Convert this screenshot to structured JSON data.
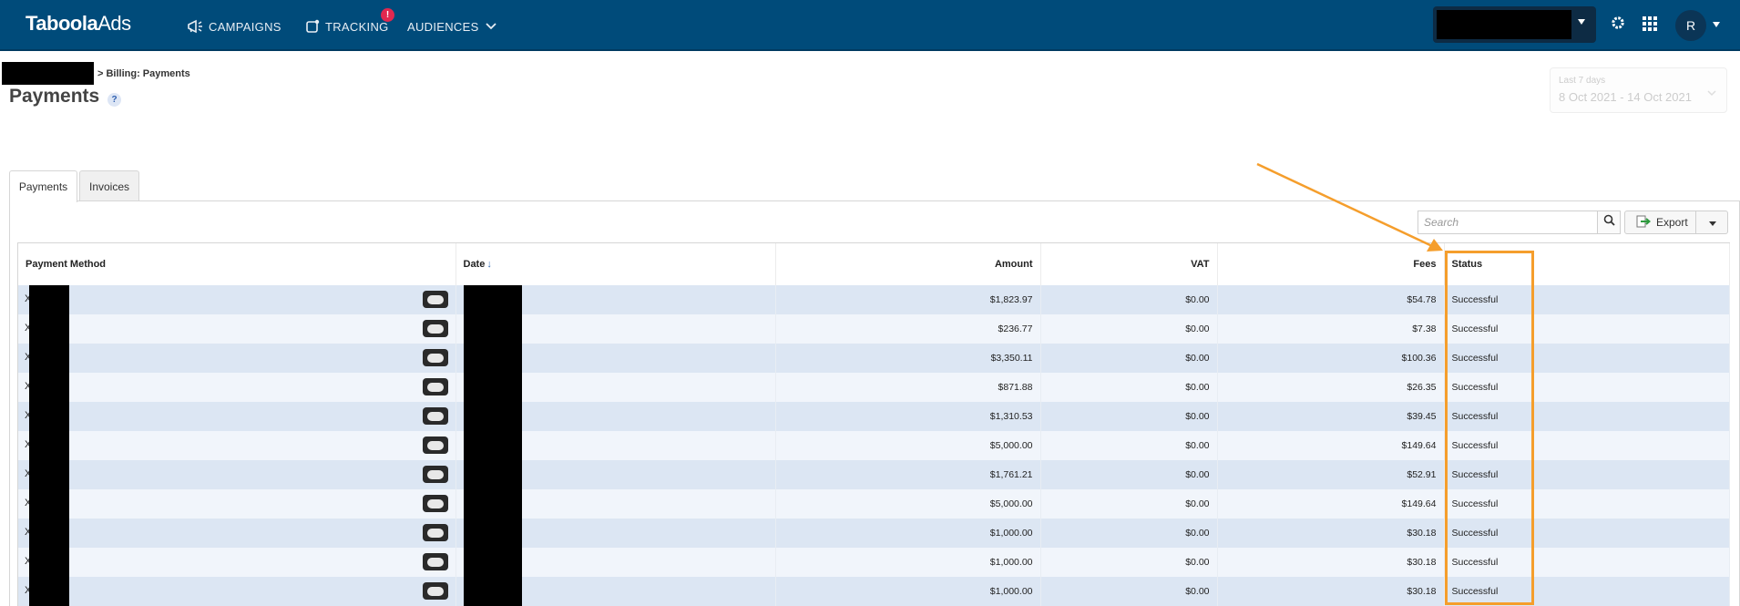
{
  "nav": {
    "logo_main": "Taboola",
    "logo_sub": "Ads",
    "items": [
      {
        "label": "CAMPAIGNS",
        "icon": "megaphone-icon"
      },
      {
        "label": "TRACKING",
        "icon": "tracking-icon",
        "badge": "!"
      },
      {
        "label": "AUDIENCES",
        "icon": "chevron-down-icon"
      }
    ],
    "avatar_initial": "R"
  },
  "header": {
    "breadcrumb": "> Billing: Payments",
    "title": "Payments",
    "help": "?"
  },
  "date_range": {
    "label": "Last 7 days",
    "value": "8 Oct 2021 - 14 Oct 2021"
  },
  "tabs": [
    {
      "label": "Payments",
      "active": true
    },
    {
      "label": "Invoices",
      "active": false
    }
  ],
  "toolbar": {
    "search_placeholder": "Search",
    "export_label": "Export"
  },
  "table": {
    "columns": {
      "payment_method": "Payment Method",
      "date": "Date",
      "amount": "Amount",
      "vat": "VAT",
      "fees": "Fees",
      "status": "Status"
    },
    "rows": [
      {
        "amount": "$1,823.97",
        "vat": "$0.00",
        "fees": "$54.78",
        "status": "Successful"
      },
      {
        "amount": "$236.77",
        "vat": "$0.00",
        "fees": "$7.38",
        "status": "Successful"
      },
      {
        "amount": "$3,350.11",
        "vat": "$0.00",
        "fees": "$100.36",
        "status": "Successful"
      },
      {
        "amount": "$871.88",
        "vat": "$0.00",
        "fees": "$26.35",
        "status": "Successful"
      },
      {
        "amount": "$1,310.53",
        "vat": "$0.00",
        "fees": "$39.45",
        "status": "Successful"
      },
      {
        "amount": "$5,000.00",
        "vat": "$0.00",
        "fees": "$149.64",
        "status": "Successful"
      },
      {
        "amount": "$1,761.21",
        "vat": "$0.00",
        "fees": "$52.91",
        "status": "Successful"
      },
      {
        "amount": "$5,000.00",
        "vat": "$0.00",
        "fees": "$149.64",
        "status": "Successful"
      },
      {
        "amount": "$1,000.00",
        "vat": "$0.00",
        "fees": "$30.18",
        "status": "Successful"
      },
      {
        "amount": "$1,000.00",
        "vat": "$0.00",
        "fees": "$30.18",
        "status": "Successful"
      },
      {
        "amount": "$1,000.00",
        "vat": "$0.00",
        "fees": "$30.18",
        "status": "Successful"
      }
    ]
  },
  "colors": {
    "nav_bg": "#004b7a",
    "annotation": "#f59e2c",
    "row_odd": "#dce6f3",
    "row_even": "#f1f5fb"
  }
}
